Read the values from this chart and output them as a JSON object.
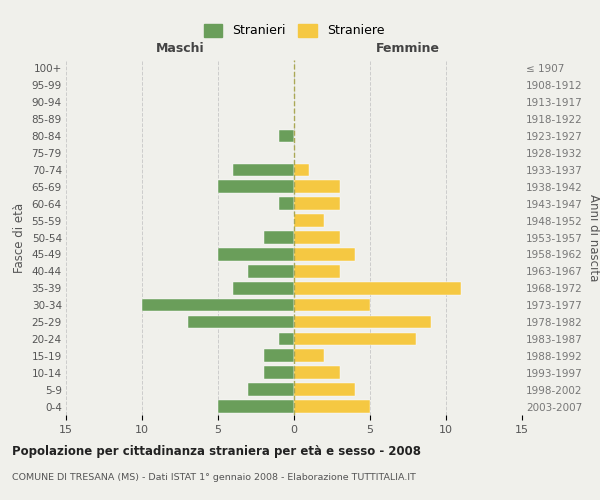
{
  "age_groups": [
    "0-4",
    "5-9",
    "10-14",
    "15-19",
    "20-24",
    "25-29",
    "30-34",
    "35-39",
    "40-44",
    "45-49",
    "50-54",
    "55-59",
    "60-64",
    "65-69",
    "70-74",
    "75-79",
    "80-84",
    "85-89",
    "90-94",
    "95-99",
    "100+"
  ],
  "birth_years": [
    "2003-2007",
    "1998-2002",
    "1993-1997",
    "1988-1992",
    "1983-1987",
    "1978-1982",
    "1973-1977",
    "1968-1972",
    "1963-1967",
    "1958-1962",
    "1953-1957",
    "1948-1952",
    "1943-1947",
    "1938-1942",
    "1933-1937",
    "1928-1932",
    "1923-1927",
    "1918-1922",
    "1913-1917",
    "1908-1912",
    "≤ 1907"
  ],
  "maschi": [
    5,
    3,
    2,
    2,
    1,
    7,
    10,
    4,
    3,
    5,
    2,
    0,
    1,
    5,
    4,
    0,
    1,
    0,
    0,
    0,
    0
  ],
  "femmine": [
    5,
    4,
    3,
    2,
    8,
    9,
    5,
    11,
    3,
    4,
    3,
    2,
    3,
    3,
    1,
    0,
    0,
    0,
    0,
    0,
    0
  ],
  "maschi_color": "#6a9e5a",
  "femmine_color": "#f5c842",
  "background_color": "#f0f0eb",
  "title": "Popolazione per cittadinanza straniera per età e sesso - 2008",
  "subtitle": "COMUNE DI TRESANA (MS) - Dati ISTAT 1° gennaio 2008 - Elaborazione TUTTITALIA.IT",
  "xlabel_left": "Maschi",
  "xlabel_right": "Femmine",
  "ylabel_left": "Fasce di età",
  "ylabel_right": "Anni di nascita",
  "legend_maschi": "Stranieri",
  "legend_femmine": "Straniere",
  "xlim": 15,
  "xticklabels": [
    "15",
    "10",
    "5",
    "0",
    "5",
    "10",
    "15"
  ]
}
